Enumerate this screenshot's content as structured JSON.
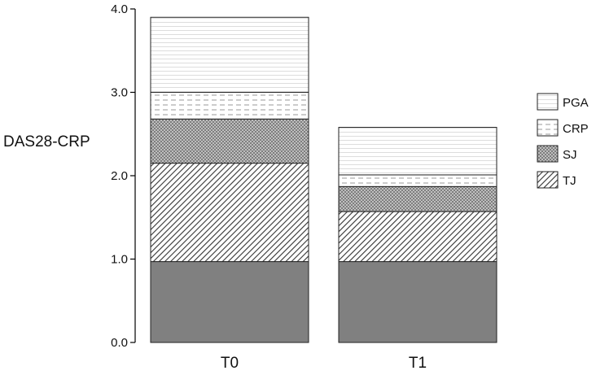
{
  "chart_data": {
    "type": "bar",
    "stacked": true,
    "categories": [
      "T0",
      "T1"
    ],
    "ylabel": "DAS28-CRP",
    "ylim": [
      0,
      4
    ],
    "yticks": [
      0,
      1,
      2,
      3,
      4
    ],
    "ytick_labels": [
      "0.0",
      "1.0",
      "2.0",
      "3.0",
      "4.0"
    ],
    "grid": false,
    "legend_position": "right",
    "legend_order": [
      "PGA",
      "CRP",
      "SJ",
      "TJ"
    ],
    "series": [
      {
        "name": "",
        "values": [
          0.97,
          0.97
        ],
        "pattern": "solid-dark-gray",
        "color": "#808080"
      },
      {
        "name": "TJ",
        "values": [
          1.18,
          0.6
        ],
        "pattern": "diagonal-hatch",
        "color": "#333333"
      },
      {
        "name": "SJ",
        "values": [
          0.53,
          0.3
        ],
        "pattern": "crosshatch",
        "color": "#777777"
      },
      {
        "name": "CRP",
        "values": [
          0.32,
          0.14
        ],
        "pattern": "dashed-horizontal",
        "color": "#999999"
      },
      {
        "name": "PGA",
        "values": [
          0.9,
          0.57
        ],
        "pattern": "fine-horizontal",
        "color": "#cccccc"
      }
    ]
  }
}
